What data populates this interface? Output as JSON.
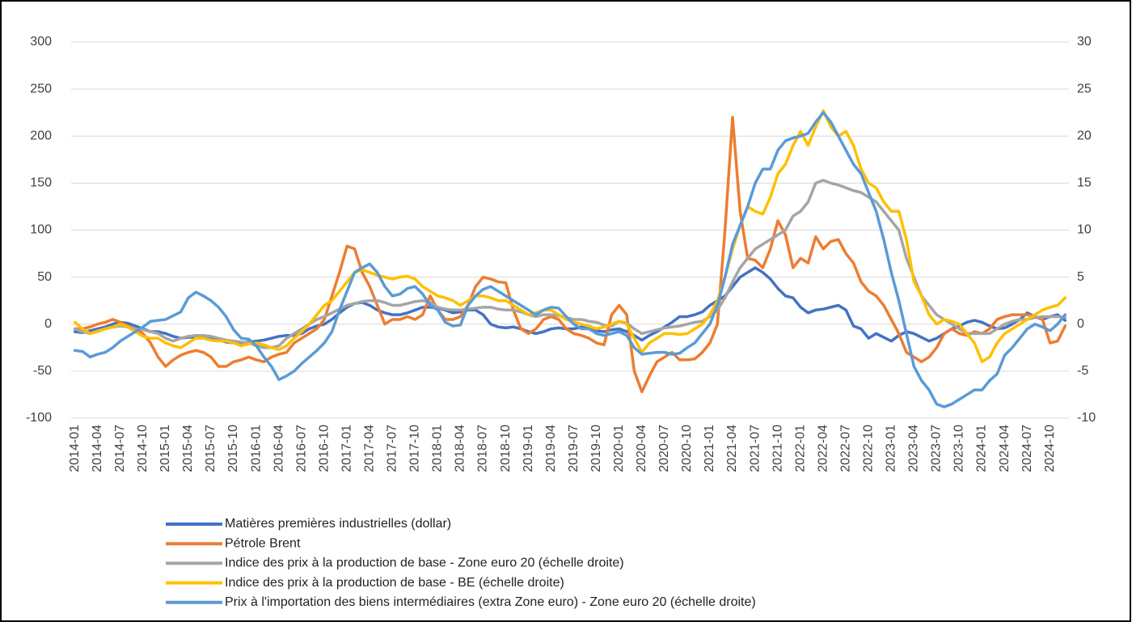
{
  "chart_data": {
    "type": "line",
    "categories": [
      "2014-01",
      null,
      null,
      "2014-04",
      null,
      null,
      "2014-07",
      null,
      null,
      "2014-10",
      null,
      null,
      "2015-01",
      null,
      null,
      "2015-04",
      null,
      null,
      "2015-07",
      null,
      null,
      "2015-10",
      null,
      null,
      "2016-01",
      null,
      null,
      "2016-04",
      null,
      null,
      "2016-07",
      null,
      null,
      "2016-10",
      null,
      null,
      "2017-01",
      null,
      null,
      "2017-04",
      null,
      null,
      "2017-07",
      null,
      null,
      "2017-10",
      null,
      null,
      "2018-01",
      null,
      null,
      "2018-04",
      null,
      null,
      "2018-07",
      null,
      null,
      "2018-10",
      null,
      null,
      "2019-01",
      null,
      null,
      "2019-04",
      null,
      null,
      "2019-07",
      null,
      null,
      "2019-10",
      null,
      null,
      "2020-01",
      null,
      null,
      "2020-04",
      null,
      null,
      "2020-07",
      null,
      null,
      "2020-10",
      null,
      null,
      "2021-01",
      null,
      null,
      "2021-04",
      null,
      null,
      "2021-07",
      null,
      null,
      "2021-10",
      null,
      null,
      "2022-01",
      null,
      null,
      "2022-04",
      null,
      null,
      "2022-07",
      null,
      null,
      "2022-10",
      null,
      null,
      "2023-01",
      null,
      null,
      "2023-04",
      null,
      null,
      "2023-07",
      null,
      null,
      "2023-10",
      null,
      null,
      "2024-01",
      null,
      null,
      "2024-04",
      null,
      null,
      "2024-07",
      null,
      null,
      "2024-10",
      null,
      null
    ],
    "series": [
      {
        "name": "Matières premières industrielles (dollar)",
        "color": "#4472c4",
        "values": [
          -8,
          -9,
          -7,
          -5,
          -3,
          0,
          2,
          1,
          -2,
          -5,
          -8,
          -8,
          -10,
          -13,
          -15,
          -14,
          -14,
          -13,
          -14,
          -17,
          -19,
          -20,
          -20,
          -19,
          -18,
          -17,
          -15,
          -13,
          -12,
          -12,
          -10,
          -5,
          -2,
          0,
          5,
          12,
          18,
          22,
          23,
          20,
          15,
          12,
          10,
          10,
          12,
          15,
          18,
          18,
          17,
          15,
          12,
          13,
          15,
          15,
          10,
          0,
          -3,
          -4,
          -3,
          -5,
          -8,
          -10,
          -8,
          -5,
          -4,
          -5,
          -5,
          -3,
          -5,
          -7,
          -8,
          -6,
          -5,
          -8,
          -12,
          -17,
          -12,
          -8,
          -3,
          2,
          8,
          8,
          10,
          13,
          20,
          25,
          30,
          40,
          50,
          55,
          60,
          55,
          48,
          38,
          30,
          28,
          18,
          12,
          15,
          16,
          18,
          20,
          15,
          -2,
          -5,
          -15,
          -10,
          -14,
          -18,
          -12,
          -8,
          -10,
          -14,
          -18,
          -15,
          -10,
          -5,
          -2,
          2,
          4,
          2,
          -2,
          -5,
          -4,
          0,
          5,
          12,
          8,
          5,
          8,
          10,
          4
        ]
      },
      {
        "name": "Pétrole Brent",
        "color": "#ed7d31",
        "values": [
          -5,
          -5,
          -3,
          0,
          2,
          5,
          2,
          -2,
          -5,
          -10,
          -20,
          -35,
          -45,
          -38,
          -33,
          -30,
          -28,
          -30,
          -35,
          -45,
          -45,
          -40,
          -38,
          -35,
          -38,
          -40,
          -35,
          -32,
          -30,
          -20,
          -15,
          -10,
          -5,
          5,
          30,
          55,
          83,
          80,
          55,
          40,
          20,
          0,
          5,
          5,
          8,
          5,
          10,
          30,
          15,
          5,
          5,
          8,
          20,
          40,
          50,
          48,
          45,
          44,
          15,
          -5,
          -10,
          -5,
          5,
          8,
          5,
          -5,
          -10,
          -12,
          -15,
          -20,
          -22,
          10,
          20,
          10,
          -50,
          -72,
          -55,
          -40,
          -35,
          -30,
          -38,
          -38,
          -37,
          -30,
          -20,
          0,
          100,
          220,
          120,
          70,
          68,
          60,
          80,
          110,
          95,
          60,
          70,
          65,
          93,
          80,
          88,
          90,
          75,
          65,
          45,
          35,
          30,
          20,
          5,
          -10,
          -30,
          -35,
          -40,
          -35,
          -25,
          -10,
          -5,
          -10,
          -12,
          -8,
          -10,
          -5,
          5,
          8,
          10,
          10,
          10,
          8,
          5,
          -20,
          -18,
          -2
        ]
      },
      {
        "name": "Indice des prix à la production de base - Zone euro 20 (échelle droite)",
        "color": "#a5a5a5",
        "axis": "y2",
        "values": [
          -0.5,
          -0.8,
          -1,
          -0.7,
          -0.5,
          -0.3,
          -0.2,
          -0.3,
          -0.5,
          -0.6,
          -0.8,
          -1,
          -1.5,
          -1.8,
          -1.5,
          -1.3,
          -1.2,
          -1.2,
          -1.3,
          -1.5,
          -1.7,
          -1.8,
          -1.9,
          -2,
          -2.3,
          -2.5,
          -2.5,
          -2.3,
          -1.5,
          -1,
          -0.5,
          0,
          0.5,
          0.8,
          1.2,
          1.6,
          2,
          2.2,
          2.4,
          2.5,
          2.5,
          2.3,
          2,
          2,
          2.2,
          2.4,
          2.5,
          2.3,
          1.8,
          1.6,
          1.5,
          1.5,
          1.6,
          1.7,
          1.8,
          1.8,
          1.6,
          1.5,
          1.5,
          1.3,
          1,
          0.8,
          1,
          1,
          0.9,
          0.7,
          0.5,
          0.5,
          0.3,
          0.2,
          -0.1,
          -0.2,
          0.3,
          0.1,
          -0.5,
          -1,
          -0.8,
          -0.6,
          -0.4,
          -0.3,
          -0.2,
          0,
          0.2,
          0.3,
          0.8,
          1.5,
          2.8,
          4.5,
          6,
          7,
          8,
          8.5,
          9,
          9.5,
          10,
          11.5,
          12,
          13,
          15,
          15.3,
          15,
          14.8,
          14.5,
          14.2,
          14,
          13.5,
          13,
          12,
          11,
          10,
          7,
          5,
          3,
          2,
          1,
          0.5,
          0,
          -0.5,
          -1,
          -1,
          -1,
          -1,
          -0.5,
          0,
          0.3,
          0.5,
          0.5,
          0.7,
          0.8,
          0.8,
          0.8,
          0.7
        ]
      },
      {
        "name": "Indice des prix à la production de base - BE (échelle droite)",
        "color": "#ffc000",
        "axis": "y2",
        "values": [
          0.2,
          -0.5,
          -1,
          -0.8,
          -0.5,
          -0.3,
          0,
          -0.3,
          -0.8,
          -1.3,
          -1.5,
          -1.5,
          -2,
          -2.3,
          -2.5,
          -2,
          -1.5,
          -1.5,
          -1.7,
          -1.8,
          -1.8,
          -2,
          -2.3,
          -2.1,
          -2,
          -2.2,
          -2.5,
          -2.7,
          -2.3,
          -1.5,
          -0.8,
          0,
          1,
          2,
          2.5,
          3.5,
          4.5,
          5.5,
          5.8,
          5.5,
          5.2,
          5,
          4.8,
          5,
          5.1,
          4.8,
          4,
          3.5,
          3,
          2.8,
          2.5,
          2,
          2.5,
          3,
          3,
          2.8,
          2.5,
          2.5,
          2,
          1.5,
          1,
          1.2,
          1.5,
          1.5,
          1,
          0.5,
          0.2,
          0,
          -0.2,
          -0.5,
          -0.3,
          0,
          0.3,
          0,
          -1.5,
          -3,
          -2,
          -1.5,
          -1,
          -1,
          -1.1,
          -1,
          -0.5,
          0,
          1,
          2.5,
          5,
          8,
          10.5,
          12.5,
          12,
          11.7,
          13.5,
          16,
          17,
          19,
          20.5,
          19,
          21,
          22.7,
          21,
          20,
          20.5,
          19,
          16.5,
          15,
          14.5,
          13,
          12,
          12,
          9,
          4.5,
          3,
          1,
          0,
          0.5,
          0.3,
          0,
          -1,
          -2,
          -4,
          -3.5,
          -2,
          -1,
          -0.5,
          0,
          0.5,
          1,
          1.5,
          1.8,
          2,
          2.8
        ]
      },
      {
        "name": "Prix à l'importation des biens intermédiaires (extra Zone euro) - Zone euro 20 (échelle droite)",
        "color": "#5b9bd5",
        "axis": "y2",
        "values": [
          -2.8,
          -2.9,
          -3.5,
          -3.2,
          -3,
          -2.5,
          -1.8,
          -1.3,
          -0.8,
          -0.3,
          0.3,
          0.4,
          0.5,
          0.9,
          1.3,
          2.8,
          3.4,
          3,
          2.5,
          1.8,
          0.8,
          -0.6,
          -1.5,
          -1.6,
          -2.3,
          -3.5,
          -4.5,
          -5.9,
          -5.5,
          -5,
          -4.2,
          -3.5,
          -2.8,
          -2,
          -0.8,
          1.5,
          3.5,
          5.5,
          6,
          6.4,
          5.5,
          4,
          3,
          3.2,
          3.8,
          4,
          3.2,
          2,
          1.5,
          0.2,
          -0.2,
          -0.1,
          2,
          3,
          3.7,
          4,
          3.5,
          3,
          2.5,
          2,
          1.5,
          1,
          1.5,
          1.8,
          1.7,
          0.8,
          0,
          -0.5,
          -0.5,
          -1,
          -1.2,
          -1,
          -0.8,
          -1.2,
          -2.5,
          -3.2,
          -3.1,
          -3,
          -3,
          -3.2,
          -3.1,
          -2.5,
          -2,
          -1,
          0,
          2,
          5,
          8.5,
          10.5,
          12.5,
          15,
          16.5,
          16.5,
          18.5,
          19.5,
          19.8,
          20,
          20.3,
          21.5,
          22.5,
          21.5,
          20,
          18.5,
          17,
          16,
          14,
          12,
          9,
          5.5,
          2.5,
          -1,
          -4.5,
          -6,
          -7,
          -8.5,
          -8.8,
          -8.5,
          -8,
          -7.5,
          -7,
          -7,
          -6,
          -5.3,
          -3.3,
          -2.5,
          -1.5,
          -0.5,
          0,
          -0.3,
          -0.7,
          0,
          1
        ]
      }
    ],
    "ylim": [
      -100,
      300
    ],
    "yticks": [
      -100,
      -50,
      0,
      50,
      100,
      150,
      200,
      250,
      300
    ],
    "y2lim": [
      -10,
      30
    ],
    "y2ticks": [
      -10,
      -5,
      0,
      5,
      10,
      15,
      20,
      25,
      30
    ],
    "grid": true,
    "legend": "bottom"
  }
}
